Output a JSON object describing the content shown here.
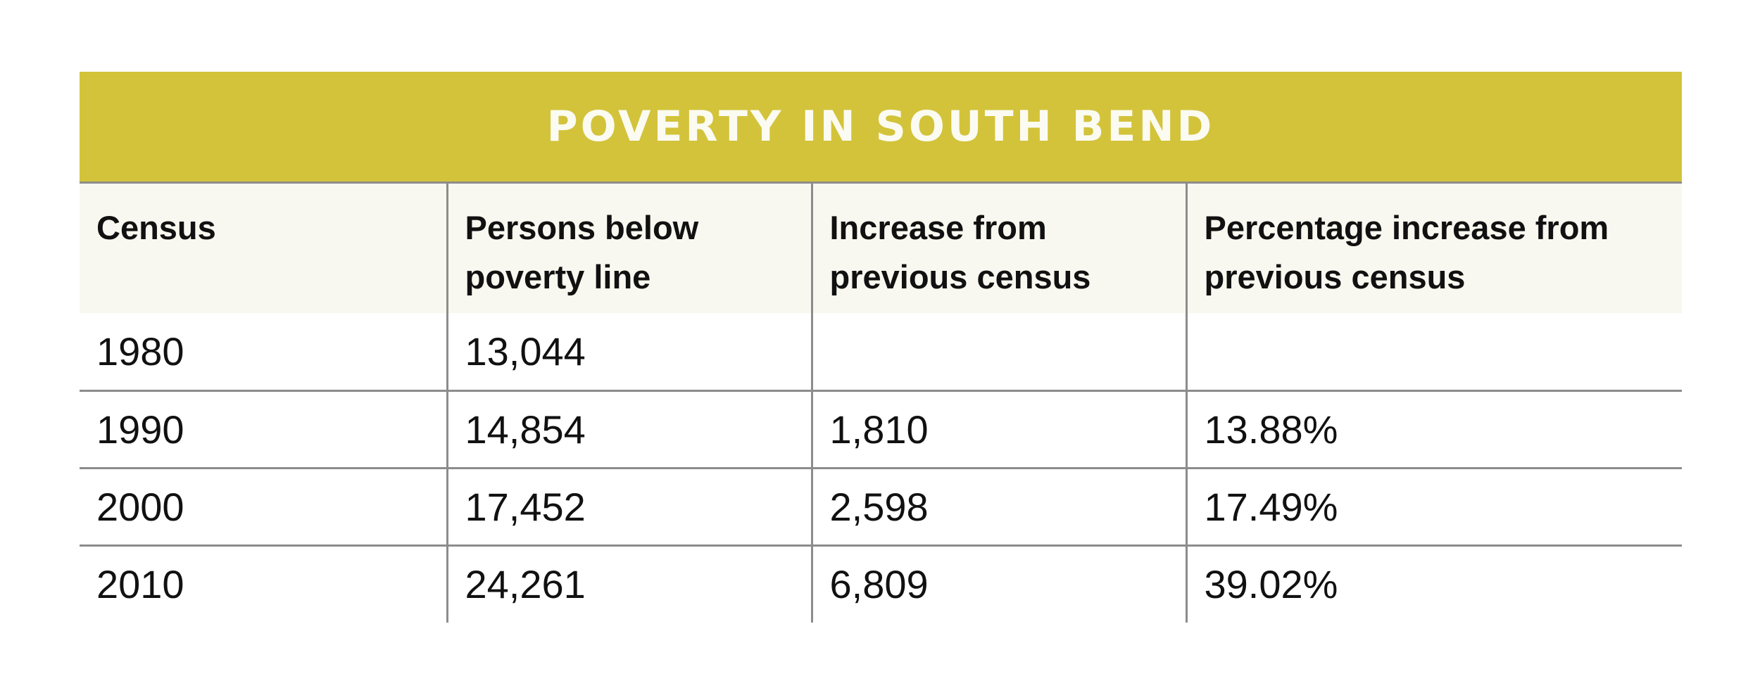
{
  "chart_data": {
    "type": "table",
    "title": "POVERTY IN SOUTH BEND",
    "columns": [
      "Census",
      "Persons below poverty line",
      "Increase from previous census",
      "Percentage increase from previous census"
    ],
    "rows": [
      {
        "census": "1980",
        "persons": "13,044",
        "increase": "",
        "pct": ""
      },
      {
        "census": "1990",
        "persons": "14,854",
        "increase": "1,810",
        "pct": "13.88%"
      },
      {
        "census": "2000",
        "persons": "17,452",
        "increase": "2,598",
        "pct": "17.49%"
      },
      {
        "census": "2010",
        "persons": "24,261",
        "increase": "6,809",
        "pct": "39.02%"
      }
    ]
  },
  "colors": {
    "title_bar": "#d3c33a",
    "title_text": "#fbfbf2",
    "header_bg": "#f8f8f0",
    "grid": "#8c8c8c"
  }
}
